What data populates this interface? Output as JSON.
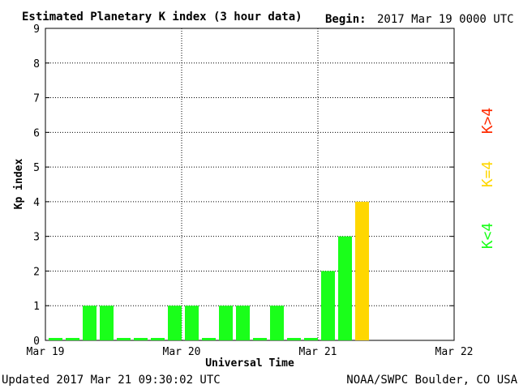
{
  "header": {
    "title": "Estimated Planetary K index (3 hour data)",
    "begin_label": "Begin:",
    "begin_value": "2017 Mar 19 0000 UTC"
  },
  "footer": {
    "updated": "Updated 2017 Mar 21 09:30:02 UTC",
    "source": "NOAA/SWPC Boulder, CO USA"
  },
  "legend": {
    "greater": {
      "text": "K>4",
      "color": "#ff2a00"
    },
    "equal": {
      "text": "K=4",
      "color": "#ffd700"
    },
    "less": {
      "text": "K<4",
      "color": "#1aff1a"
    }
  },
  "chart_data": {
    "type": "bar",
    "title": "Estimated Planetary K index (3 hour data)",
    "xlabel": "Universal Time",
    "ylabel": "Kp index",
    "ylim": [
      0,
      9
    ],
    "yticks": [
      "0",
      "1",
      "2",
      "3",
      "4",
      "5",
      "6",
      "7",
      "8",
      "9"
    ],
    "xtick_labels": [
      "Mar 19",
      "Mar 20",
      "Mar 21",
      "Mar 22"
    ],
    "slots_total": 24,
    "values": [
      0,
      0,
      1,
      1,
      0,
      0,
      0,
      1,
      1,
      0,
      1,
      1,
      0,
      1,
      0,
      0,
      2,
      3,
      4
    ],
    "colors": {
      "below4": "#1aff1a",
      "equal4": "#ffd700",
      "above4": "#ff2a00"
    },
    "grid": true
  }
}
